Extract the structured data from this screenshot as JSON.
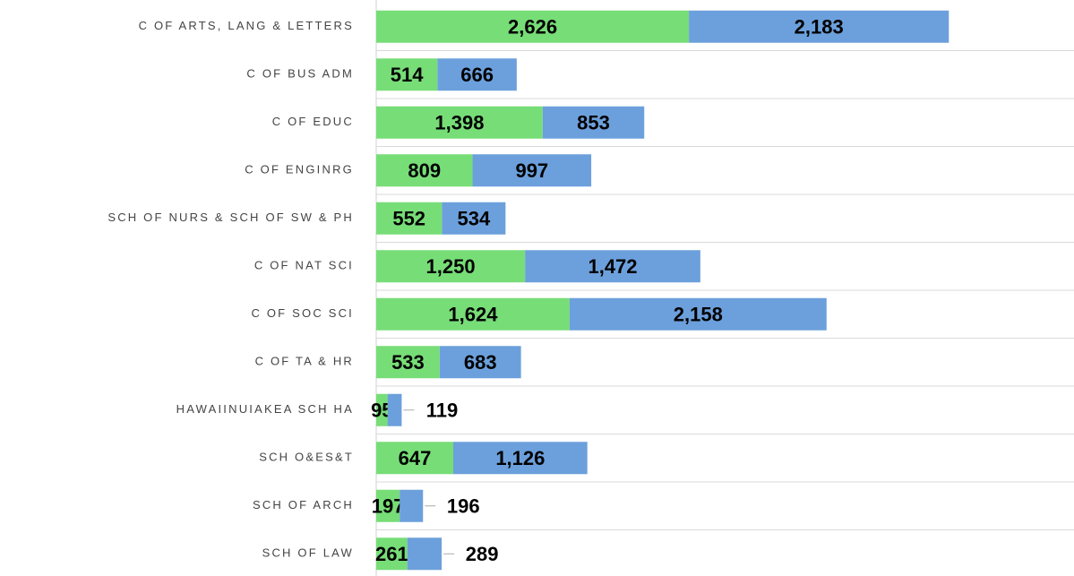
{
  "chart_data": {
    "type": "stacked_barh",
    "categories": [
      "C OF ARTS, LANG & LETTERS",
      "C OF BUS ADM",
      "C OF EDUC",
      "C OF ENGINRG",
      "SCH OF NURS & SCH OF SW & PH",
      "C OF NAT SCI",
      "C OF SOC SCI",
      "C OF TA & HR",
      "HAWAIINUIAKEA SCH HA",
      "SCH O&ES&T",
      "SCH OF ARCH",
      "SCH OF LAW"
    ],
    "series": [
      {
        "color": "#77dd77",
        "values": [
          2626,
          514,
          1398,
          809,
          552,
          1250,
          1624,
          533,
          95,
          647,
          197,
          261
        ],
        "value_labels": [
          "2,626",
          "514",
          "1,398",
          "809",
          "552",
          "1,250",
          "1,624",
          "533",
          "95",
          "647",
          "197",
          "261"
        ]
      },
      {
        "color": "#6ca0dc",
        "values": [
          2183,
          666,
          853,
          997,
          534,
          1472,
          2158,
          683,
          119,
          1126,
          196,
          289
        ],
        "value_labels": [
          "2,183",
          "666",
          "853",
          "997",
          "534",
          "1,472",
          "2,158",
          "683",
          "119",
          "1,126",
          "196",
          "289"
        ]
      }
    ],
    "xlim": [
      0,
      5860
    ]
  }
}
